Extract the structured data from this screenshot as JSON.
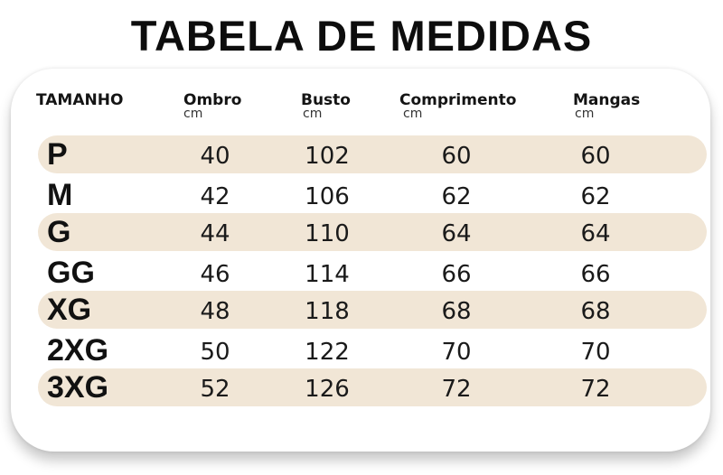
{
  "title": "TABELA DE MEDIDAS",
  "table": {
    "headers": [
      {
        "label": "TAMANHO",
        "unit": ""
      },
      {
        "label": "Ombro",
        "unit": "cm"
      },
      {
        "label": "Busto",
        "unit": "cm"
      },
      {
        "label": "Comprimento",
        "unit": "cm"
      },
      {
        "label": "Mangas",
        "unit": "cm"
      }
    ],
    "rows": [
      {
        "size": "P",
        "ombro": "40",
        "busto": "102",
        "comprimento": "60",
        "mangas": "60"
      },
      {
        "size": "M",
        "ombro": "42",
        "busto": "106",
        "comprimento": "62",
        "mangas": "62"
      },
      {
        "size": "G",
        "ombro": "44",
        "busto": "110",
        "comprimento": "64",
        "mangas": "64"
      },
      {
        "size": "GG",
        "ombro": "46",
        "busto": "114",
        "comprimento": "66",
        "mangas": "66"
      },
      {
        "size": "XG",
        "ombro": "48",
        "busto": "118",
        "comprimento": "68",
        "mangas": "68"
      },
      {
        "size": "2XG",
        "ombro": "50",
        "busto": "122",
        "comprimento": "70",
        "mangas": "70"
      },
      {
        "size": "3XG",
        "ombro": "52",
        "busto": "126",
        "comprimento": "72",
        "mangas": "72"
      }
    ]
  },
  "colors": {
    "row_band": "#f1e6d6",
    "text": "#111111",
    "card_background": "#ffffff"
  }
}
